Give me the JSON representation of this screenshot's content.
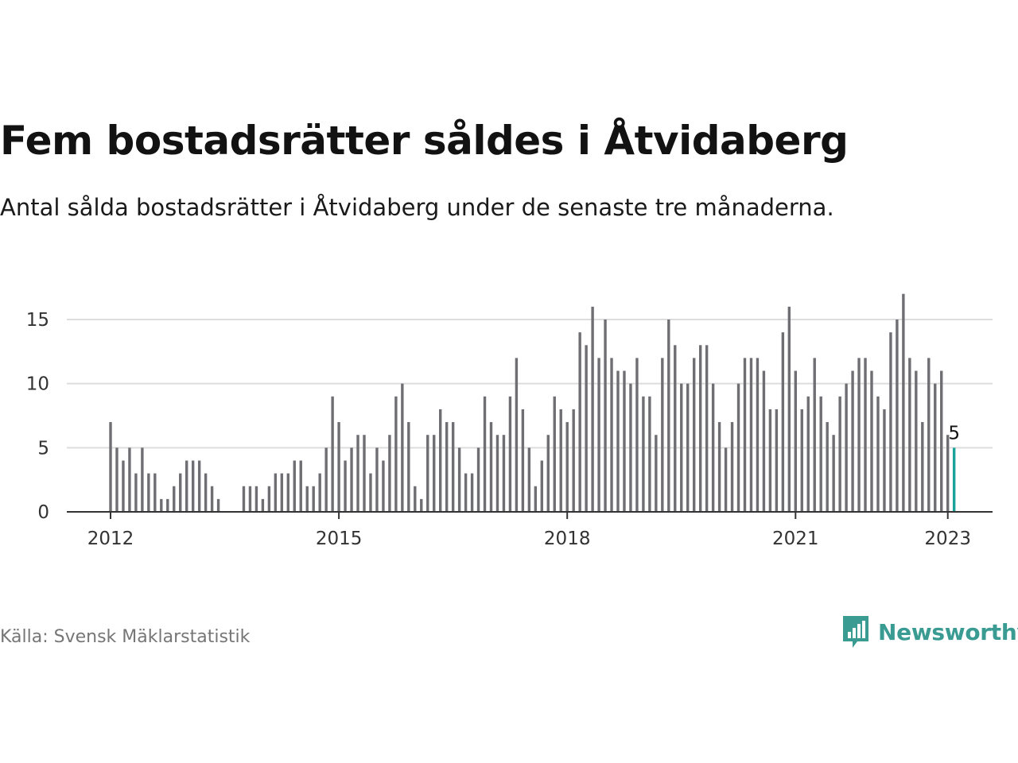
{
  "title": "Fem bostadsrätter såldes i Åtvidaberg",
  "subtitle": "Antal sålda bostadsrätter i Åtvidaberg under de senaste tre månaderna.",
  "source": "Källa: Svensk Mäklarstatistik",
  "brand": "Newsworthy",
  "colors": {
    "bar": "#6f6e73",
    "highlight": "#1aa39b",
    "grid": "#dddddd",
    "axis": "#333333",
    "brand": "#3a9b92"
  },
  "chart_data": {
    "type": "bar",
    "x_start": "2012-01",
    "x_ticks": [
      "2012",
      "2015",
      "2018",
      "2021",
      "2023"
    ],
    "y_ticks": [
      0,
      5,
      10,
      15
    ],
    "ylim": [
      0,
      17.5
    ],
    "values": [
      7,
      5,
      4,
      5,
      3,
      5,
      3,
      3,
      1,
      1,
      2,
      3,
      4,
      4,
      4,
      3,
      2,
      1,
      0,
      0,
      0,
      2,
      2,
      2,
      1,
      2,
      3,
      3,
      3,
      4,
      4,
      2,
      2,
      3,
      5,
      9,
      7,
      4,
      5,
      6,
      6,
      3,
      5,
      4,
      6,
      9,
      10,
      7,
      2,
      1,
      6,
      6,
      8,
      7,
      7,
      5,
      3,
      3,
      5,
      9,
      7,
      6,
      6,
      9,
      12,
      8,
      5,
      2,
      4,
      6,
      9,
      8,
      7,
      8,
      14,
      13,
      16,
      12,
      15,
      12,
      11,
      11,
      10,
      12,
      9,
      9,
      6,
      12,
      15,
      13,
      10,
      10,
      12,
      13,
      13,
      10,
      7,
      5,
      7,
      10,
      12,
      12,
      12,
      11,
      8,
      8,
      14,
      16,
      11,
      8,
      9,
      12,
      9,
      7,
      6,
      9,
      10,
      11,
      12,
      12,
      11,
      9,
      8,
      14,
      15,
      17,
      12,
      11,
      7,
      12,
      10,
      11,
      6,
      5
    ],
    "highlight_label": "5",
    "grid": true,
    "legend": "none"
  }
}
